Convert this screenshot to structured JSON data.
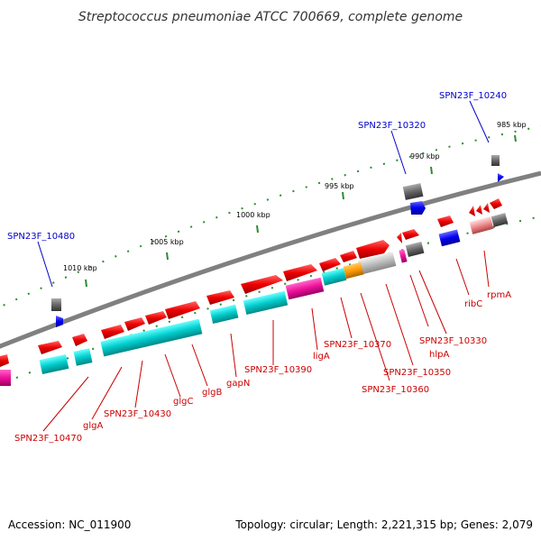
{
  "title": "Streptococcus pneumoniae ATCC 700669, complete genome",
  "footer": {
    "accession": "Accession: NC_011900",
    "summary": "Topology: circular; Length: 2,221,315 bp; Genes: 2,079"
  },
  "ticks": [
    "985 kbp",
    "990 kbp",
    "995 kbp",
    "1000 kbp",
    "1005 kbp",
    "1010 kbp"
  ],
  "top_genes": [
    "SPN23F_10240",
    "SPN23F_10320",
    "SPN23F_10480"
  ],
  "bottom_genes": [
    "rpmA",
    "ribC",
    "SPN23F_10330",
    "hlpA",
    "SPN23F_10350",
    "SPN23F_10360",
    "SPN23F_10370",
    "ligA",
    "SPN23F_10390",
    "gapN",
    "glgB",
    "glgC",
    "SPN23F_10430",
    "glgA",
    "SPN23F_10470"
  ],
  "colors": {
    "backbone": "#808080",
    "forward_cds": "#ee0000",
    "reverse_cds": "#00bbbb",
    "rna": "#0000ee",
    "misc": "#666666",
    "tick": "#2e8b2e"
  }
}
